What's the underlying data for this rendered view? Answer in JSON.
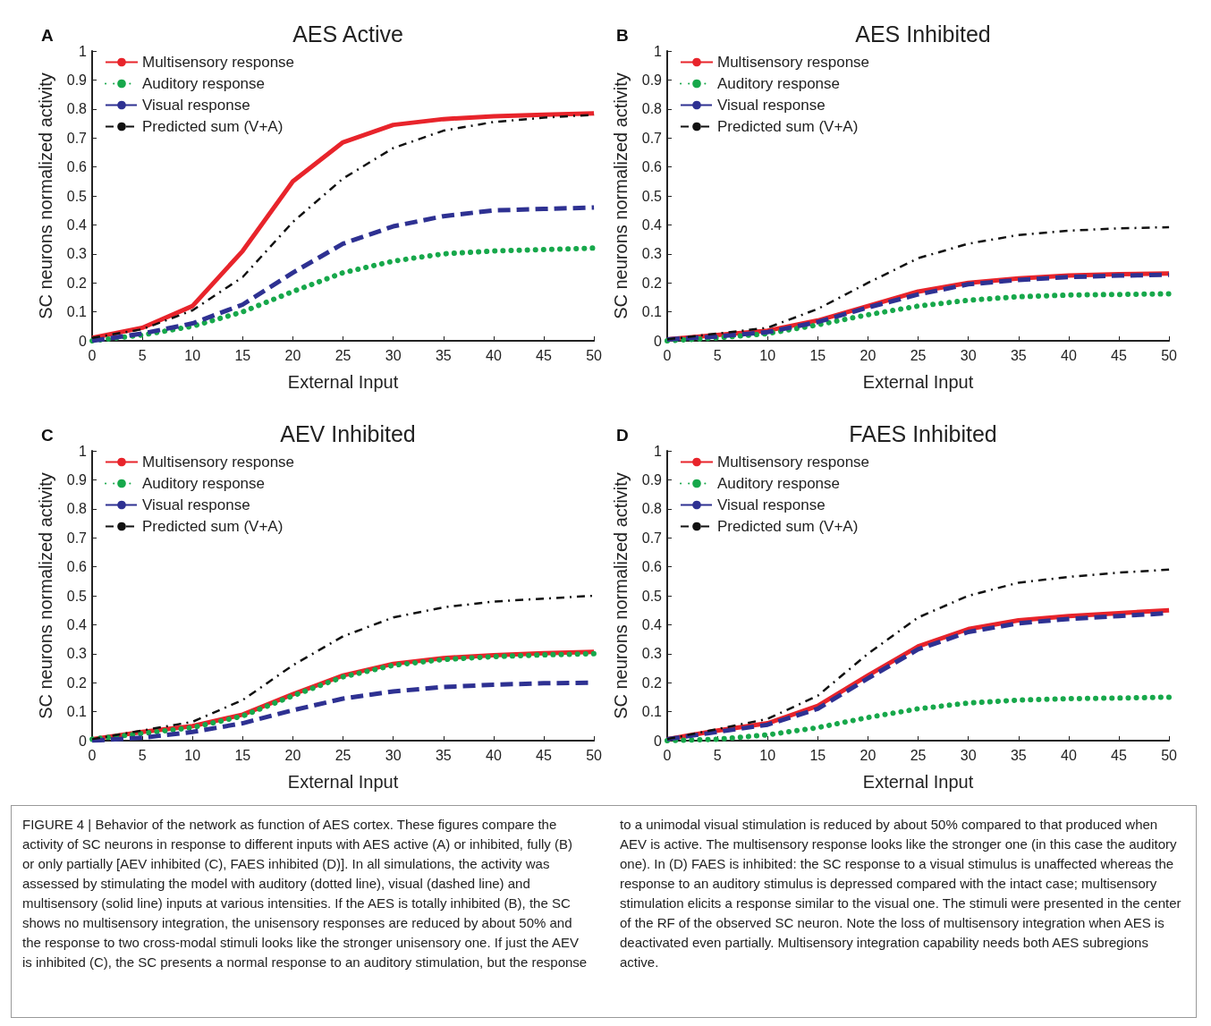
{
  "chart_data": [
    {
      "type": "line",
      "title": "AES Active",
      "xlabel": "External Input",
      "ylabel": "SC neurons normalized activity",
      "annotations": [
        "A"
      ],
      "x": [
        0,
        5,
        10,
        15,
        20,
        25,
        30,
        35,
        40,
        45,
        50
      ],
      "xlim": [
        0,
        50
      ],
      "xticks": [
        0,
        5,
        10,
        15,
        20,
        25,
        30,
        35,
        40,
        45,
        50
      ],
      "ylim": [
        0,
        1
      ],
      "yticks": [
        0,
        0.1,
        0.2,
        0.3,
        0.4,
        0.5,
        0.6,
        0.7,
        0.8,
        0.9,
        1
      ],
      "grid": false,
      "legend": "top left",
      "marker": "none",
      "series": [
        {
          "name": "Multisensory response",
          "color": "#e8242b",
          "line_style": "solid",
          "values": [
            0.01,
            0.045,
            0.12,
            0.31,
            0.55,
            0.685,
            0.745,
            0.765,
            0.775,
            0.78,
            0.785
          ]
        },
        {
          "name": "Auditory response",
          "color": "#17a84b",
          "line_style": "dotted",
          "values": [
            0,
            0.02,
            0.05,
            0.1,
            0.17,
            0.235,
            0.275,
            0.3,
            0.31,
            0.315,
            0.32
          ]
        },
        {
          "name": "Visual response",
          "color": "#2e3192",
          "line_style": "dashed",
          "values": [
            0,
            0.025,
            0.06,
            0.125,
            0.235,
            0.335,
            0.395,
            0.43,
            0.45,
            0.455,
            0.46
          ]
        },
        {
          "name": "Predicted sum (V+A)",
          "color": "#111111",
          "line_style": "dashdot",
          "values": [
            0.01,
            0.04,
            0.105,
            0.22,
            0.41,
            0.56,
            0.665,
            0.725,
            0.755,
            0.77,
            0.78
          ]
        }
      ]
    },
    {
      "type": "line",
      "title": "AES Inhibited",
      "xlabel": "External Input",
      "ylabel": "SC neurons normalized activity",
      "annotations": [
        "B"
      ],
      "x": [
        0,
        5,
        10,
        15,
        20,
        25,
        30,
        35,
        40,
        45,
        50
      ],
      "xlim": [
        0,
        50
      ],
      "xticks": [
        0,
        5,
        10,
        15,
        20,
        25,
        30,
        35,
        40,
        45,
        50
      ],
      "ylim": [
        0,
        1
      ],
      "yticks": [
        0,
        0.1,
        0.2,
        0.3,
        0.4,
        0.5,
        0.6,
        0.7,
        0.8,
        0.9,
        1
      ],
      "grid": false,
      "legend": "top left",
      "marker": "none",
      "series": [
        {
          "name": "Multisensory response",
          "color": "#e8242b",
          "line_style": "solid",
          "values": [
            0.005,
            0.02,
            0.035,
            0.07,
            0.12,
            0.17,
            0.2,
            0.215,
            0.225,
            0.23,
            0.232
          ]
        },
        {
          "name": "Auditory response",
          "color": "#17a84b",
          "line_style": "dotted",
          "values": [
            0,
            0.01,
            0.025,
            0.055,
            0.09,
            0.12,
            0.14,
            0.152,
            0.158,
            0.16,
            0.162
          ]
        },
        {
          "name": "Visual response",
          "color": "#2e3192",
          "line_style": "dashed",
          "values": [
            0.005,
            0.015,
            0.03,
            0.065,
            0.115,
            0.16,
            0.195,
            0.21,
            0.22,
            0.225,
            0.228
          ]
        },
        {
          "name": "Predicted sum (V+A)",
          "color": "#111111",
          "line_style": "dashdot",
          "values": [
            0.005,
            0.025,
            0.045,
            0.11,
            0.2,
            0.285,
            0.335,
            0.365,
            0.38,
            0.388,
            0.392
          ]
        }
      ]
    },
    {
      "type": "line",
      "title": "AEV Inhibited",
      "xlabel": "External Input",
      "ylabel": "SC neurons normalized activity",
      "annotations": [
        "C"
      ],
      "x": [
        0,
        5,
        10,
        15,
        20,
        25,
        30,
        35,
        40,
        45,
        50
      ],
      "xlim": [
        0,
        50
      ],
      "xticks": [
        0,
        5,
        10,
        15,
        20,
        25,
        30,
        35,
        40,
        45,
        50
      ],
      "ylim": [
        0,
        1
      ],
      "yticks": [
        0,
        0.1,
        0.2,
        0.3,
        0.4,
        0.5,
        0.6,
        0.7,
        0.8,
        0.9,
        1
      ],
      "grid": false,
      "legend": "top left",
      "marker": "none",
      "series": [
        {
          "name": "Multisensory response",
          "color": "#e8242b",
          "line_style": "solid",
          "values": [
            0.005,
            0.03,
            0.05,
            0.09,
            0.16,
            0.225,
            0.265,
            0.285,
            0.295,
            0.302,
            0.306
          ]
        },
        {
          "name": "Auditory response",
          "color": "#17a84b",
          "line_style": "dotted",
          "values": [
            0.005,
            0.025,
            0.045,
            0.085,
            0.155,
            0.22,
            0.26,
            0.28,
            0.29,
            0.296,
            0.3
          ]
        },
        {
          "name": "Visual response",
          "color": "#2e3192",
          "line_style": "dashed",
          "values": [
            0,
            0.01,
            0.03,
            0.06,
            0.105,
            0.145,
            0.17,
            0.185,
            0.193,
            0.198,
            0.2
          ]
        },
        {
          "name": "Predicted sum (V+A)",
          "color": "#111111",
          "line_style": "dashdot",
          "values": [
            0.005,
            0.035,
            0.065,
            0.14,
            0.26,
            0.36,
            0.425,
            0.46,
            0.48,
            0.49,
            0.5
          ]
        }
      ]
    },
    {
      "type": "line",
      "title": "FAES Inhibited",
      "xlabel": "External Input",
      "ylabel": "SC neurons normalized activity",
      "annotations": [
        "D",
        "FIGURE 4 | Behavior of the network as function of AES cortex. These figures compare the activity of SC neurons in response to different inputs with AES active (A) or inhibited, fully (B) or only partially [AEV inhibited (C), FAES inhibited (D)]. In all simulations, the activity was assessed by stimulating the model with auditory (dotted line), visual (dashed line) and multisensory (solid line) inputs at various intensities. If the AES is totally inhibited (B), the SC shows no multisensory integration, the unisensory responses are reduced by about 50% and the response to two cross-modal stimuli looks like the stronger unisensory one. If just the AEV is inhibited (C), the SC presents a normal response to an auditory stimulation, but the response to a unimodal visual stimulation is reduced by about 50% compared to that produced when AEV is active. The multisensory response looks like the stronger one (in this case the auditory one). In (D) FAES is inhibited: the SC response to a visual stimulus is unaffected whereas the response to an auditory stimulus is depressed compared with the intact case; multisensory stimulation elicits a response similar to the visual one. The stimuli were presented in the center of the RF of the observed SC neuron. Note the loss of multisensory integration when AES is deactivated even partially. Multisensory integration capability needs both AES subregions active."
      ],
      "x": [
        0,
        5,
        10,
        15,
        20,
        25,
        30,
        35,
        40,
        45,
        50
      ],
      "xlim": [
        0,
        50
      ],
      "xticks": [
        0,
        5,
        10,
        15,
        20,
        25,
        30,
        35,
        40,
        45,
        50
      ],
      "ylim": [
        0,
        1
      ],
      "yticks": [
        0,
        0.1,
        0.2,
        0.3,
        0.4,
        0.5,
        0.6,
        0.7,
        0.8,
        0.9,
        1
      ],
      "grid": false,
      "legend": "top left",
      "marker": "none",
      "series": [
        {
          "name": "Multisensory response",
          "color": "#e8242b",
          "line_style": "solid",
          "values": [
            0.005,
            0.035,
            0.06,
            0.12,
            0.225,
            0.325,
            0.385,
            0.415,
            0.43,
            0.44,
            0.45
          ]
        },
        {
          "name": "Auditory response",
          "color": "#17a84b",
          "line_style": "dotted",
          "values": [
            0,
            0.005,
            0.02,
            0.045,
            0.08,
            0.11,
            0.13,
            0.14,
            0.145,
            0.147,
            0.15
          ]
        },
        {
          "name": "Visual response",
          "color": "#2e3192",
          "line_style": "dashed",
          "values": [
            0.005,
            0.03,
            0.055,
            0.11,
            0.215,
            0.315,
            0.375,
            0.405,
            0.42,
            0.43,
            0.44
          ]
        },
        {
          "name": "Predicted sum (V+A)",
          "color": "#111111",
          "line_style": "dashdot",
          "values": [
            0.005,
            0.04,
            0.075,
            0.155,
            0.3,
            0.425,
            0.5,
            0.545,
            0.565,
            0.58,
            0.59
          ]
        }
      ]
    }
  ]
}
